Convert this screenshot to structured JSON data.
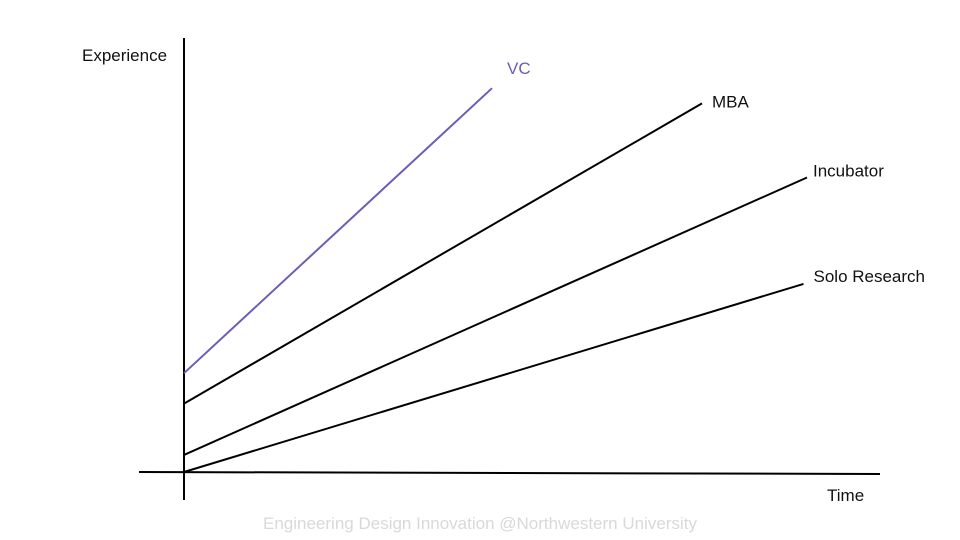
{
  "chart_data": {
    "type": "line",
    "xlabel": "Time",
    "ylabel": "Experience",
    "xlim": [
      0,
      10
    ],
    "ylim": [
      0,
      10
    ],
    "grid": false,
    "legend": "none",
    "series": [
      {
        "name": "VC",
        "color": "#6a5fb5",
        "x": [
          0,
          4.4
        ],
        "y": [
          2.6,
          10.1
        ]
      },
      {
        "name": "MBA",
        "color": "#000000",
        "x": [
          0,
          7.4
        ],
        "y": [
          1.8,
          9.7
        ]
      },
      {
        "name": "Incubator",
        "color": "#000000",
        "x": [
          0,
          8.9
        ],
        "y": [
          0.45,
          7.75
        ]
      },
      {
        "name": "Solo Research",
        "color": "#000000",
        "x": [
          0,
          8.85
        ],
        "y": [
          0,
          4.95
        ]
      }
    ]
  },
  "footer": {
    "watermark": "Engineering Design Innovation @Northwestern University"
  }
}
